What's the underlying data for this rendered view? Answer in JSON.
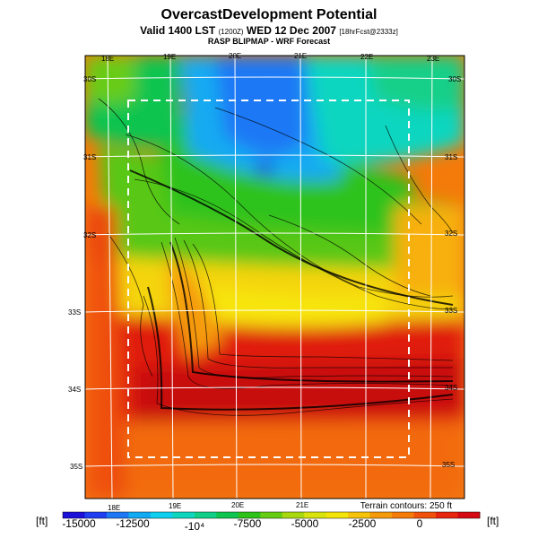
{
  "header": {
    "title": "OvercastDevelopment Potential",
    "valid_prefix": "Valid 1400 LST",
    "valid_small": "(1200Z)",
    "valid_date": "WED 12 Dec 2007",
    "valid_run": "[18hrFcst@2333z]",
    "subtitle2": "RASP BLIPMAP - WRF Forecast"
  },
  "map": {
    "lon_labels_top": [
      "18E",
      "19E",
      "20E",
      "21E",
      "22E",
      "23E"
    ],
    "lon_labels_bottom": [
      "18E",
      "19E",
      "20E",
      "21E"
    ],
    "lat_labels_left": [
      "30S",
      "31S",
      "32S",
      "33S",
      "34S",
      "35S"
    ],
    "lat_labels_right": [
      "30S",
      "31S",
      "32S",
      "33S",
      "34S",
      "35S"
    ],
    "terrain_note": "Terrain contours: 250 ft"
  },
  "colorbar": {
    "unit_left": "[ft]",
    "unit_right": "[ft]",
    "tick_labels": [
      "-15000",
      "-12500",
      "-10⁴",
      "-7500",
      "-5000",
      "-2500",
      "0"
    ],
    "colors": [
      "#1a10d8",
      "#1f3ff0",
      "#1e78f5",
      "#12aaf2",
      "#0fcff0",
      "#10d6c0",
      "#12cf88",
      "#10c450",
      "#2cc21a",
      "#67cc14",
      "#a9d811",
      "#d9e40f",
      "#f5e40a",
      "#f7c20a",
      "#f59a0a",
      "#f47a0a",
      "#f0520c",
      "#e8250e",
      "#d60a12"
    ]
  }
}
